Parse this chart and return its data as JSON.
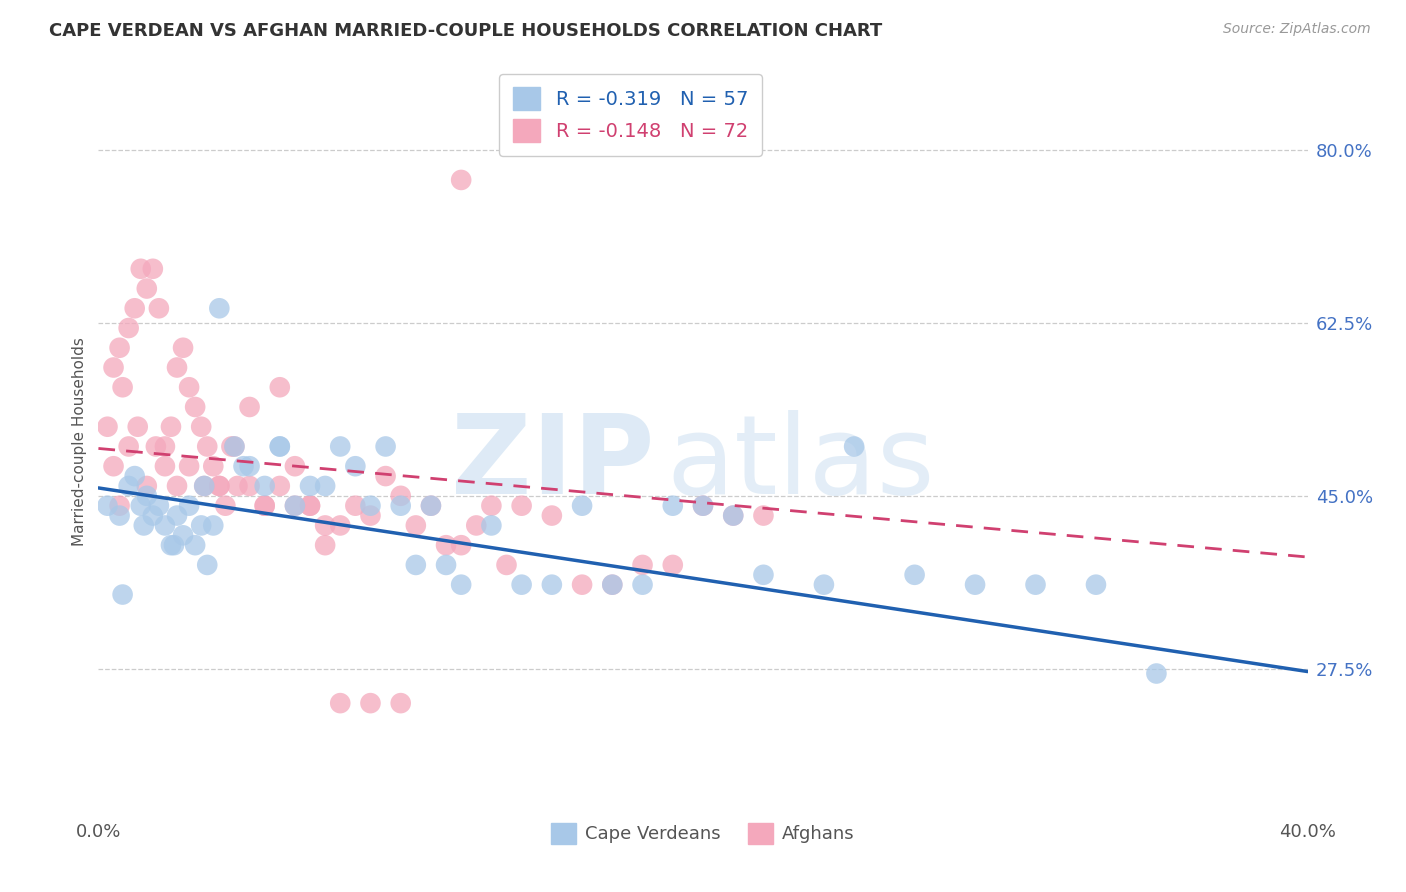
{
  "title": "CAPE VERDEAN VS AFGHAN MARRIED-COUPLE HOUSEHOLDS CORRELATION CHART",
  "source": "Source: ZipAtlas.com",
  "ylabel": "Married-couple Households",
  "ytick_vals": [
    0.8,
    0.625,
    0.45,
    0.275
  ],
  "ytick_labels": [
    "80.0%",
    "62.5%",
    "45.0%",
    "27.5%"
  ],
  "xtick_vals": [
    0.0,
    0.1,
    0.2,
    0.3,
    0.4
  ],
  "xtick_labels": [
    "0.0%",
    "",
    "",
    "",
    "40.0%"
  ],
  "xlim": [
    0.0,
    0.4
  ],
  "ylim": [
    0.13,
    0.88
  ],
  "blue_color": "#a8c8e8",
  "pink_color": "#f4a8bc",
  "blue_line_color": "#2060b0",
  "pink_line_color": "#d04070",
  "legend_blue_label_r": "R = -0.319",
  "legend_blue_label_n": "N = 57",
  "legend_pink_label_r": "R = -0.148",
  "legend_pink_label_n": "N = 72",
  "watermark_zip": "ZIP",
  "watermark_atlas": "atlas",
  "xlabel_label_blue": "Cape Verdeans",
  "xlabel_label_pink": "Afghans",
  "blue_line_x0": 0.0,
  "blue_line_y0": 0.458,
  "blue_line_x1": 0.4,
  "blue_line_y1": 0.272,
  "pink_line_x0": 0.0,
  "pink_line_y0": 0.498,
  "pink_line_x1": 0.4,
  "pink_line_y1": 0.388,
  "blue_x": [
    0.003,
    0.007,
    0.01,
    0.012,
    0.014,
    0.016,
    0.018,
    0.02,
    0.022,
    0.024,
    0.026,
    0.028,
    0.03,
    0.032,
    0.034,
    0.036,
    0.038,
    0.04,
    0.045,
    0.05,
    0.055,
    0.06,
    0.065,
    0.07,
    0.08,
    0.085,
    0.09,
    0.095,
    0.1,
    0.105,
    0.11,
    0.115,
    0.12,
    0.13,
    0.14,
    0.15,
    0.16,
    0.17,
    0.18,
    0.19,
    0.2,
    0.21,
    0.22,
    0.24,
    0.25,
    0.27,
    0.29,
    0.31,
    0.33,
    0.35,
    0.008,
    0.015,
    0.025,
    0.035,
    0.048,
    0.06,
    0.075
  ],
  "blue_y": [
    0.44,
    0.43,
    0.46,
    0.47,
    0.44,
    0.45,
    0.43,
    0.44,
    0.42,
    0.4,
    0.43,
    0.41,
    0.44,
    0.4,
    0.42,
    0.38,
    0.42,
    0.64,
    0.5,
    0.48,
    0.46,
    0.5,
    0.44,
    0.46,
    0.5,
    0.48,
    0.44,
    0.5,
    0.44,
    0.38,
    0.44,
    0.38,
    0.36,
    0.42,
    0.36,
    0.36,
    0.44,
    0.36,
    0.36,
    0.44,
    0.44,
    0.43,
    0.37,
    0.36,
    0.5,
    0.37,
    0.36,
    0.36,
    0.36,
    0.27,
    0.35,
    0.42,
    0.4,
    0.46,
    0.48,
    0.5,
    0.46
  ],
  "pink_x": [
    0.003,
    0.005,
    0.007,
    0.008,
    0.01,
    0.012,
    0.014,
    0.016,
    0.018,
    0.02,
    0.022,
    0.024,
    0.026,
    0.028,
    0.03,
    0.032,
    0.034,
    0.036,
    0.038,
    0.04,
    0.042,
    0.044,
    0.046,
    0.05,
    0.055,
    0.06,
    0.065,
    0.07,
    0.075,
    0.08,
    0.085,
    0.09,
    0.095,
    0.1,
    0.105,
    0.11,
    0.115,
    0.12,
    0.125,
    0.13,
    0.135,
    0.14,
    0.15,
    0.16,
    0.17,
    0.18,
    0.19,
    0.2,
    0.21,
    0.22,
    0.005,
    0.007,
    0.01,
    0.013,
    0.016,
    0.019,
    0.022,
    0.026,
    0.03,
    0.035,
    0.04,
    0.045,
    0.05,
    0.055,
    0.06,
    0.065,
    0.07,
    0.075,
    0.08,
    0.09,
    0.1,
    0.12
  ],
  "pink_y": [
    0.52,
    0.58,
    0.6,
    0.56,
    0.62,
    0.64,
    0.68,
    0.66,
    0.68,
    0.64,
    0.5,
    0.52,
    0.58,
    0.6,
    0.56,
    0.54,
    0.52,
    0.5,
    0.48,
    0.46,
    0.44,
    0.5,
    0.46,
    0.54,
    0.44,
    0.56,
    0.44,
    0.44,
    0.4,
    0.42,
    0.44,
    0.43,
    0.47,
    0.45,
    0.42,
    0.44,
    0.4,
    0.4,
    0.42,
    0.44,
    0.38,
    0.44,
    0.43,
    0.36,
    0.36,
    0.38,
    0.38,
    0.44,
    0.43,
    0.43,
    0.48,
    0.44,
    0.5,
    0.52,
    0.46,
    0.5,
    0.48,
    0.46,
    0.48,
    0.46,
    0.46,
    0.5,
    0.46,
    0.44,
    0.46,
    0.48,
    0.44,
    0.42,
    0.24,
    0.24,
    0.24,
    0.77
  ]
}
